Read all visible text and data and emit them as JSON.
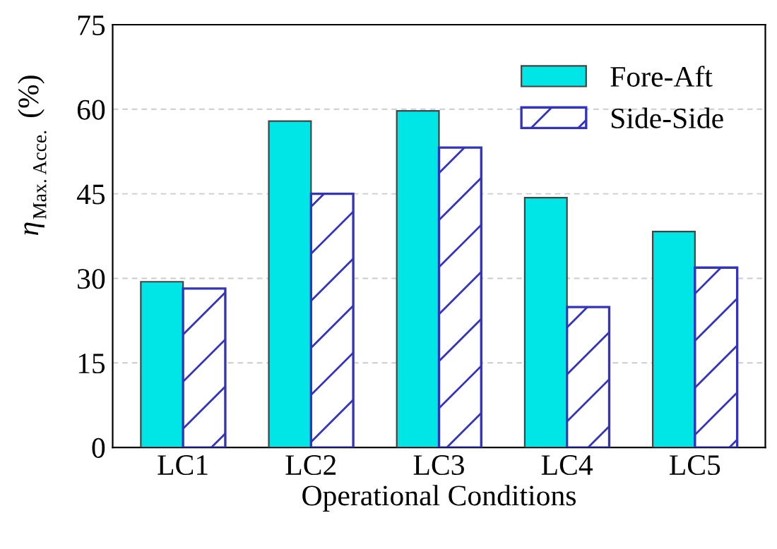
{
  "chart_data": {
    "type": "bar",
    "xlabel": "Operational Conditions",
    "ylabel": "η$_{Max. Acce.}$ (%)",
    "categories": [
      "LC1",
      "LC2",
      "LC3",
      "LC4",
      "LC5"
    ],
    "series": [
      {
        "name": "Fore-Aft",
        "color": "#00e5e5",
        "values": [
          29.4,
          57.9,
          59.7,
          44.3,
          38.3
        ]
      },
      {
        "name": "Side-Side",
        "color": "#3333bb",
        "values": [
          28.2,
          45,
          53.2,
          24.9,
          31.9
        ]
      }
    ],
    "ylim": [
      0,
      75
    ],
    "yticks": [
      0,
      15,
      30,
      45,
      60,
      75
    ],
    "grid": "y",
    "legend": "top right"
  }
}
